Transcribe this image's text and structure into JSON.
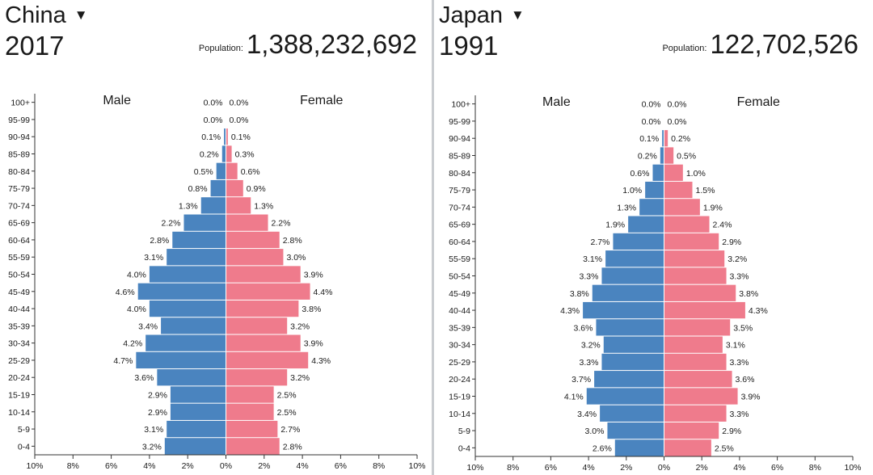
{
  "chart_data": [
    {
      "type": "bar",
      "orientation": "horizontal",
      "country": "China",
      "year": "2017",
      "population_label": "Population:",
      "population": "1,388,232,692",
      "male_label": "Male",
      "female_label": "Female",
      "categories": [
        "100+",
        "95-99",
        "90-94",
        "85-89",
        "80-84",
        "75-79",
        "70-74",
        "65-69",
        "60-64",
        "55-59",
        "50-54",
        "45-49",
        "40-44",
        "35-39",
        "30-34",
        "25-29",
        "20-24",
        "15-19",
        "10-14",
        "5-9",
        "0-4"
      ],
      "series": [
        {
          "name": "Male",
          "values": [
            0.0,
            0.0,
            0.1,
            0.2,
            0.5,
            0.8,
            1.3,
            2.2,
            2.8,
            3.1,
            4.0,
            4.6,
            4.0,
            3.4,
            4.2,
            4.7,
            3.6,
            2.9,
            2.9,
            3.1,
            3.2
          ],
          "color": "#4a84bf"
        },
        {
          "name": "Female",
          "values": [
            0.0,
            0.0,
            0.1,
            0.3,
            0.6,
            0.9,
            1.3,
            2.2,
            2.8,
            3.0,
            3.9,
            4.4,
            3.8,
            3.2,
            3.9,
            4.3,
            3.2,
            2.5,
            2.5,
            2.7,
            2.8
          ],
          "color": "#ef7b8c"
        }
      ],
      "x_ticks": [
        "10%",
        "8%",
        "6%",
        "4%",
        "2%",
        "0%",
        "2%",
        "4%",
        "6%",
        "8%",
        "10%"
      ],
      "xlim": [
        -10,
        10
      ]
    },
    {
      "type": "bar",
      "orientation": "horizontal",
      "country": "Japan",
      "year": "1991",
      "population_label": "Population:",
      "population": "122,702,526",
      "male_label": "Male",
      "female_label": "Female",
      "categories": [
        "100+",
        "95-99",
        "90-94",
        "85-89",
        "80-84",
        "75-79",
        "70-74",
        "65-69",
        "60-64",
        "55-59",
        "50-54",
        "45-49",
        "40-44",
        "35-39",
        "30-34",
        "25-29",
        "20-24",
        "15-19",
        "10-14",
        "5-9",
        "0-4"
      ],
      "series": [
        {
          "name": "Male",
          "values": [
            0.0,
            0.0,
            0.1,
            0.2,
            0.6,
            1.0,
            1.3,
            1.9,
            2.7,
            3.1,
            3.3,
            3.8,
            4.3,
            3.6,
            3.2,
            3.3,
            3.7,
            4.1,
            3.4,
            3.0,
            2.6
          ],
          "color": "#4a84bf"
        },
        {
          "name": "Female",
          "values": [
            0.0,
            0.0,
            0.2,
            0.5,
            1.0,
            1.5,
            1.9,
            2.4,
            2.9,
            3.2,
            3.3,
            3.8,
            4.3,
            3.5,
            3.1,
            3.3,
            3.6,
            3.9,
            3.3,
            2.9,
            2.5
          ],
          "color": "#ef7b8c"
        }
      ],
      "x_ticks": [
        "10%",
        "8%",
        "6%",
        "4%",
        "2%",
        "0%",
        "2%",
        "4%",
        "6%",
        "8%",
        "10%"
      ],
      "xlim": [
        -10,
        10
      ]
    }
  ]
}
